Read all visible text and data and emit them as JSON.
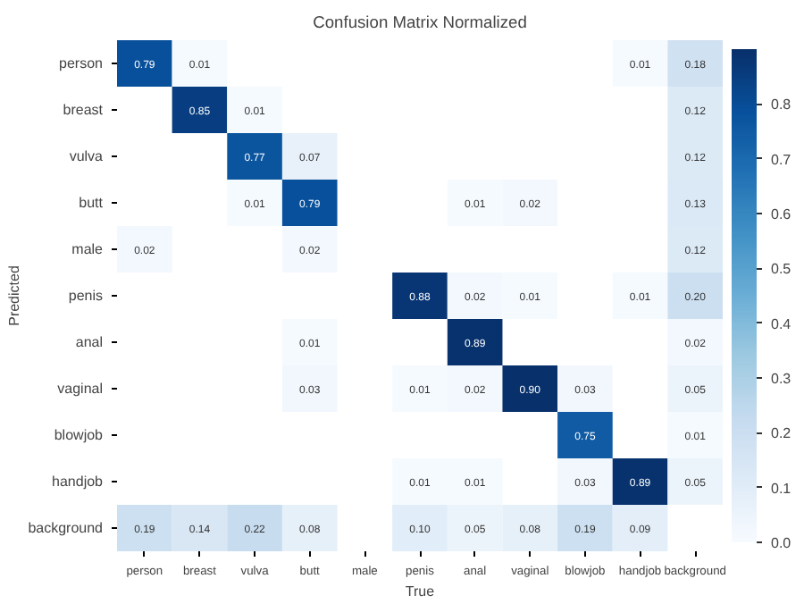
{
  "chart_data": {
    "type": "heatmap",
    "title": "Confusion Matrix Normalized",
    "xlabel": "True",
    "ylabel": "Predicted",
    "categories": [
      "person",
      "breast",
      "vulva",
      "butt",
      "male",
      "penis",
      "anal",
      "vaginal",
      "blowjob",
      "handjob",
      "background"
    ],
    "y_categories": [
      "person",
      "breast",
      "vulva",
      "butt",
      "male",
      "penis",
      "anal",
      "vaginal",
      "blowjob",
      "handjob",
      "background"
    ],
    "cells": [
      [
        0.79,
        0.01,
        null,
        null,
        null,
        null,
        null,
        null,
        null,
        0.01,
        0.18
      ],
      [
        null,
        0.85,
        0.01,
        null,
        null,
        null,
        null,
        null,
        null,
        null,
        0.12
      ],
      [
        null,
        null,
        0.77,
        0.07,
        null,
        null,
        null,
        null,
        null,
        null,
        0.12
      ],
      [
        null,
        null,
        0.01,
        0.79,
        null,
        null,
        0.01,
        0.02,
        null,
        null,
        0.13
      ],
      [
        0.02,
        null,
        null,
        0.02,
        null,
        null,
        null,
        null,
        null,
        null,
        0.12
      ],
      [
        null,
        null,
        null,
        null,
        null,
        0.88,
        0.02,
        0.01,
        null,
        0.01,
        0.2
      ],
      [
        null,
        null,
        null,
        0.01,
        null,
        null,
        0.89,
        null,
        null,
        null,
        0.02
      ],
      [
        null,
        null,
        null,
        0.03,
        null,
        0.01,
        0.02,
        0.9,
        0.03,
        null,
        0.05
      ],
      [
        null,
        null,
        null,
        null,
        null,
        null,
        null,
        null,
        0.75,
        null,
        0.01
      ],
      [
        null,
        null,
        null,
        null,
        null,
        0.01,
        0.01,
        null,
        0.03,
        0.89,
        0.05
      ],
      [
        0.19,
        0.14,
        0.22,
        0.08,
        null,
        0.1,
        0.05,
        0.08,
        0.19,
        0.09,
        null
      ]
    ],
    "cell_labels": [
      [
        "0.79",
        "0.01",
        null,
        null,
        null,
        null,
        null,
        null,
        null,
        "0.01",
        "0.18"
      ],
      [
        null,
        "0.85",
        "0.01",
        null,
        null,
        null,
        null,
        null,
        null,
        null,
        "0.12"
      ],
      [
        null,
        null,
        "0.77",
        "0.07",
        null,
        null,
        null,
        null,
        null,
        null,
        "0.12"
      ],
      [
        null,
        null,
        "0.01",
        "0.79",
        null,
        null,
        "0.01",
        "0.02",
        null,
        null,
        "0.13"
      ],
      [
        "0.02",
        null,
        null,
        "0.02",
        null,
        null,
        null,
        null,
        null,
        null,
        "0.12"
      ],
      [
        null,
        null,
        null,
        null,
        null,
        "0.88",
        "0.02",
        "0.01",
        null,
        "0.01",
        "0.20"
      ],
      [
        null,
        null,
        null,
        "0.01",
        null,
        null,
        "0.89",
        null,
        null,
        null,
        "0.02"
      ],
      [
        null,
        null,
        null,
        "0.03",
        null,
        "0.01",
        "0.02",
        "0.90",
        "0.03",
        null,
        "0.05"
      ],
      [
        null,
        null,
        null,
        null,
        null,
        null,
        null,
        null,
        "0.75",
        null,
        "0.01"
      ],
      [
        null,
        null,
        null,
        null,
        null,
        "0.01",
        "0.01",
        null,
        "0.03",
        "0.89",
        "0.05"
      ],
      [
        "0.19",
        "0.14",
        "0.22",
        "0.08",
        null,
        "0.10",
        "0.05",
        "0.08",
        "0.19",
        "0.09",
        null
      ]
    ],
    "clim": [
      0,
      0.9
    ],
    "cticks": [
      {
        "value": 0,
        "label": "0.0"
      },
      {
        "value": 0.1,
        "label": "0.1"
      },
      {
        "value": 0.2,
        "label": "0.2"
      },
      {
        "value": 0.3,
        "label": "0.3"
      },
      {
        "value": 0.4,
        "label": "0.4"
      },
      {
        "value": 0.5,
        "label": "0.5"
      },
      {
        "value": 0.6,
        "label": "0.6"
      },
      {
        "value": 0.7,
        "label": "0.7"
      },
      {
        "value": 0.8,
        "label": "0.8"
      }
    ],
    "data_labels": true
  }
}
